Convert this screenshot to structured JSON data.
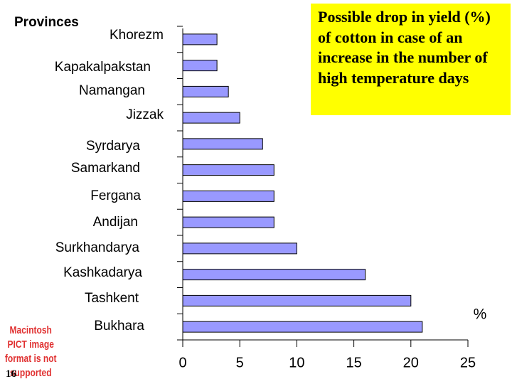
{
  "chart_data": {
    "type": "bar",
    "orientation": "horizontal",
    "title": "Possible drop in yield (%) of cotton in case of an increase in the number of high temperature days",
    "y_label": "Provinces",
    "x_label": "%",
    "categories": [
      "Khorezm",
      "Kapakalpakstan",
      "Namangan",
      "Jizzak",
      "Syrdarya",
      "Samarkand",
      "Fergana",
      "Andijan",
      "Surkhandarya",
      "Kashkadarya",
      "Tashkent",
      "Bukhara"
    ],
    "values": [
      3,
      3,
      4,
      5,
      7,
      8,
      8,
      8,
      10,
      16,
      20,
      21
    ],
    "color": "#9999ff",
    "xlim": [
      0,
      25
    ],
    "xticks": [
      0,
      5,
      10,
      15,
      20,
      25
    ]
  },
  "placeholder_image": "Macintosh PICT image format is not supported",
  "page_number": "16"
}
